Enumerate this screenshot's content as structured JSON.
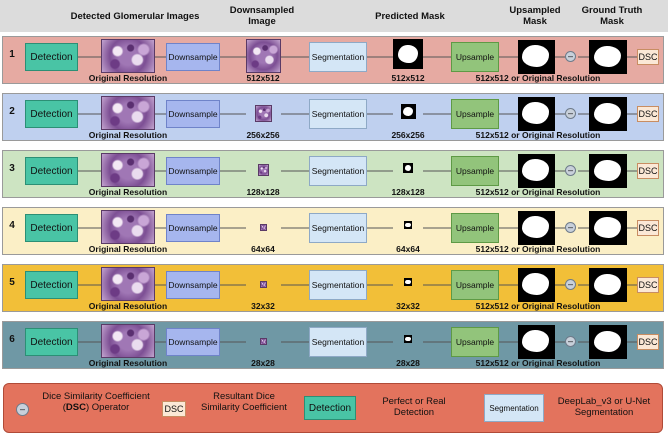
{
  "headers": {
    "detected": "Detected Glomerular Images",
    "downsampled": "Downsampled Image",
    "predicted": "Predicted Mask",
    "upsampled": "Upsampled Mask",
    "ground_truth": "Ground Truth Mask"
  },
  "labels": {
    "detection": "Detection",
    "downsample": "Downsample",
    "segmentation": "Segmentation",
    "upsample": "Upsample",
    "dsc": "DSC",
    "original_resolution": "Original Resolution",
    "upsampled_res": "512x512 or Original Resolution",
    "operator": "–"
  },
  "rows": [
    {
      "num": "1",
      "res": "512x512",
      "color": "#e6aaa2",
      "down_scale": 1.0
    },
    {
      "num": "2",
      "res": "256x256",
      "color": "#bfd0ef",
      "down_scale": 0.5
    },
    {
      "num": "3",
      "res": "128x128",
      "color": "#cde4c2",
      "down_scale": 0.33
    },
    {
      "num": "4",
      "res": "64x64",
      "color": "#fbefc6",
      "down_scale": 0.2
    },
    {
      "num": "5",
      "res": "32x32",
      "color": "#f2bf38",
      "down_scale": 0.12
    },
    {
      "num": "6",
      "res": "28x28",
      "color": "#6f98a5",
      "down_scale": 0.1
    }
  ],
  "legend": {
    "dice_operator": "Dice Similarity Coefficient (DSC) Operator",
    "resultant_dice": "Resultant Dice Similarity Coefficient",
    "perfect_detection": "Perfect or Real Detection",
    "seg_method": "DeepLab_v3 or U-Net Segmentation"
  }
}
